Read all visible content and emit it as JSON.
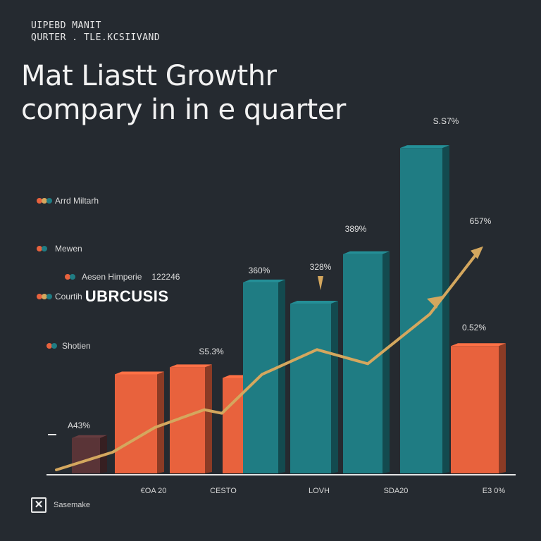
{
  "header": {
    "kicker_line1": "UIPEBD MANIT",
    "kicker_line2": "QURTER . TLE.KCSIIVAND",
    "title_line1": "Mat Liastt Growthr",
    "title_line2": "compary in in e quarter"
  },
  "legend": {
    "items": [
      {
        "label": "Arrd Miltarh"
      },
      {
        "label": "Mewen"
      },
      {
        "label": "Aesen Himperie",
        "extra": "122246"
      },
      {
        "label": "Courtih",
        "big": "UBRCUSIS"
      },
      {
        "label": "Shotien"
      }
    ]
  },
  "footnote": {
    "icon": "close-icon",
    "text": "Sasemake"
  },
  "colors": {
    "background": "#252a30",
    "orange": "#e8623d",
    "teal": "#1f7c83",
    "maroon": "#5a3437",
    "line": "#d4a75e"
  },
  "chart_data": {
    "type": "bar",
    "title": "",
    "xlabel": "",
    "ylabel": "",
    "ylim": [
      0,
      100
    ],
    "grid": false,
    "legend_placement": "left",
    "x_tick_labels": [
      "€OA 20",
      "CESTO",
      "LOVH",
      "SDA20",
      "E3 0%"
    ],
    "bars": [
      {
        "value": 10,
        "color": "maroon",
        "label": "A43%"
      },
      {
        "value": 28,
        "color": "orange",
        "label": ""
      },
      {
        "value": 30,
        "color": "orange",
        "label": "S5.3%"
      },
      {
        "value": 27,
        "color": "orange",
        "label": ""
      },
      {
        "value": 54,
        "color": "teal",
        "label": "360%"
      },
      {
        "value": 48,
        "color": "teal",
        "label": "328%"
      },
      {
        "value": 62,
        "color": "teal",
        "label": "389%"
      },
      {
        "value": 92,
        "color": "teal",
        "label": "S.S7%"
      },
      {
        "value": 36,
        "color": "orange",
        "label": "0.52%"
      }
    ],
    "series": [
      {
        "name": "",
        "type": "line",
        "values": [
          1,
          6,
          13,
          18,
          17,
          28,
          35,
          31,
          45,
          63
        ]
      }
    ],
    "line_label": "657%"
  }
}
